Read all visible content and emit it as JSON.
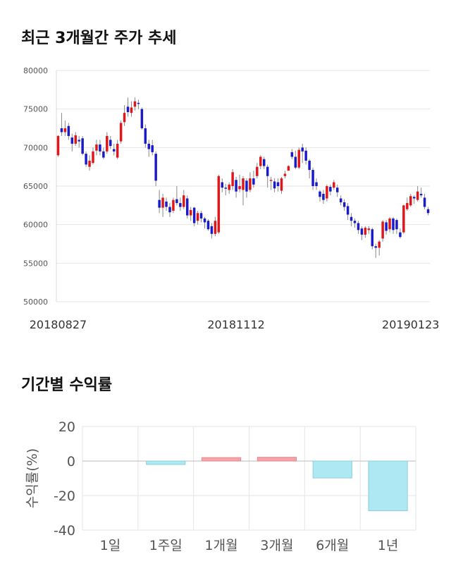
{
  "titles": {
    "candle": "최근 3개월간 주가 추세",
    "returns": "기간별 수익률"
  },
  "colors": {
    "up": "#e0161b",
    "down": "#1a1ac8",
    "wick": "#888888",
    "bar_positive": "#f4a3a8",
    "bar_negative": "#aee8f2"
  },
  "chart_data": [
    {
      "type": "candlestick",
      "ylim": [
        50000,
        80000
      ],
      "y_ticks": [
        50000,
        55000,
        60000,
        65000,
        70000,
        75000,
        80000
      ],
      "x_tick_labels": [
        "20180827",
        "20181112",
        "20190123"
      ],
      "x_tick_index": [
        0,
        51,
        101
      ],
      "grid": true,
      "candles": [
        [
          69000,
          71500,
          68800,
          71600
        ],
        [
          72500,
          72000,
          71500,
          74500
        ],
        [
          72000,
          72500,
          71500,
          73500
        ],
        [
          72800,
          71500,
          71000,
          73200
        ],
        [
          71300,
          70500,
          69500,
          71800
        ],
        [
          70500,
          71600,
          70200,
          72000
        ],
        [
          71000,
          70800,
          70000,
          71500
        ],
        [
          71200,
          69200,
          69000,
          71500
        ],
        [
          69200,
          67800,
          67500,
          69500
        ],
        [
          67500,
          68300,
          67000,
          69000
        ],
        [
          68000,
          69500,
          67800,
          70000
        ],
        [
          69600,
          70400,
          69000,
          71000
        ],
        [
          70400,
          69500,
          69000,
          71000
        ],
        [
          69500,
          68700,
          68500,
          70000
        ],
        [
          69500,
          71500,
          69200,
          72000
        ],
        [
          71000,
          70200,
          69800,
          71500
        ],
        [
          69800,
          69500,
          69000,
          70500
        ],
        [
          68700,
          70500,
          68500,
          71000
        ],
        [
          70800,
          73200,
          70500,
          73500
        ],
        [
          73300,
          74500,
          72800,
          75500
        ],
        [
          75300,
          74600,
          74000,
          76500
        ],
        [
          74500,
          75200,
          74000,
          76000
        ],
        [
          75300,
          76000,
          74800,
          76500
        ],
        [
          75800,
          75700,
          75000,
          76200
        ],
        [
          75000,
          72500,
          72300,
          75200
        ],
        [
          72500,
          70500,
          70000,
          73000
        ],
        [
          70500,
          69800,
          68800,
          71000
        ],
        [
          70300,
          69400,
          69000,
          71000
        ],
        [
          69200,
          65700,
          65000,
          69500
        ],
        [
          63200,
          62200,
          61500,
          64500
        ],
        [
          62200,
          63500,
          61000,
          64000
        ],
        [
          63000,
          62300,
          61800,
          63500
        ],
        [
          62300,
          61600,
          61000,
          62800
        ],
        [
          61800,
          63200,
          61500,
          63500
        ],
        [
          63300,
          62800,
          62500,
          65000
        ],
        [
          62800,
          62300,
          61800,
          63500
        ],
        [
          62300,
          63800,
          62000,
          64500
        ],
        [
          63400,
          61200,
          60800,
          63800
        ],
        [
          61200,
          61900,
          60500,
          62300
        ],
        [
          62200,
          60200,
          59800,
          62300
        ],
        [
          60500,
          61500,
          60000,
          61800
        ],
        [
          61500,
          60800,
          60300,
          61800
        ],
        [
          60800,
          60300,
          59500,
          61000
        ],
        [
          60500,
          59400,
          59200,
          60700
        ],
        [
          59800,
          58800,
          58200,
          60200
        ],
        [
          58800,
          60500,
          58500,
          61000
        ],
        [
          59000,
          66300,
          58800,
          66500
        ],
        [
          65500,
          64800,
          64200,
          66000
        ],
        [
          64800,
          64700,
          63800,
          65300
        ],
        [
          64500,
          65200,
          64000,
          65500
        ],
        [
          65000,
          66800,
          64500,
          67200
        ],
        [
          65800,
          64300,
          63500,
          66200
        ],
        [
          64600,
          65000,
          64200,
          66500
        ],
        [
          64500,
          66000,
          62500,
          66300
        ],
        [
          65700,
          64300,
          63500,
          66000
        ],
        [
          64500,
          66000,
          64200,
          66800
        ],
        [
          66000,
          65200,
          64800,
          67000
        ],
        [
          66300,
          67500,
          66000,
          68000
        ],
        [
          67600,
          68800,
          67200,
          69000
        ],
        [
          68500,
          67600,
          67200,
          68800
        ],
        [
          67500,
          66300,
          64800,
          67800
        ],
        [
          65800,
          65800,
          64500,
          66200
        ],
        [
          65600,
          64700,
          64200,
          66000
        ],
        [
          65500,
          65000,
          64300,
          66000
        ],
        [
          64400,
          66000,
          64000,
          66200
        ],
        [
          66300,
          66600,
          66000,
          67000
        ],
        [
          67000,
          67600,
          67000,
          67700
        ],
        [
          69400,
          68800,
          68500,
          69800
        ],
        [
          68800,
          67400,
          67200,
          69600
        ],
        [
          67400,
          69700,
          67200,
          70000
        ],
        [
          70000,
          69500,
          68000,
          70500
        ],
        [
          69600,
          68300,
          67800,
          70000
        ],
        [
          68300,
          67100,
          66000,
          68500
        ],
        [
          67100,
          65000,
          64500,
          67400
        ],
        [
          65500,
          65000,
          64500,
          66000
        ],
        [
          64300,
          63600,
          63000,
          64500
        ],
        [
          64000,
          63200,
          62700,
          64500
        ],
        [
          63400,
          65000,
          63000,
          65200
        ],
        [
          64900,
          64300,
          63800,
          65200
        ],
        [
          64800,
          65500,
          64500,
          65800
        ],
        [
          64800,
          64200,
          63600,
          65200
        ],
        [
          63400,
          62900,
          62500,
          63800
        ],
        [
          62900,
          62300,
          61800,
          63300
        ],
        [
          62400,
          61300,
          60600,
          62800
        ],
        [
          61000,
          60500,
          59800,
          61500
        ],
        [
          60500,
          60200,
          59600,
          60800
        ],
        [
          60200,
          59300,
          58800,
          60500
        ],
        [
          59500,
          58700,
          58000,
          59800
        ],
        [
          58700,
          59600,
          58300,
          59800
        ],
        [
          59300,
          59500,
          58800,
          59800
        ],
        [
          59400,
          57200,
          56800,
          59600
        ],
        [
          57200,
          57000,
          55700,
          57500
        ],
        [
          57000,
          57800,
          56000,
          58000
        ],
        [
          58200,
          60400,
          57800,
          60600
        ],
        [
          60300,
          59200,
          58700,
          60600
        ],
        [
          59400,
          60800,
          59000,
          61000
        ],
        [
          60800,
          59300,
          58800,
          61000
        ],
        [
          60600,
          59400,
          58800,
          60800
        ],
        [
          59000,
          58400,
          58200,
          59500
        ],
        [
          59000,
          62500,
          58800,
          62600
        ],
        [
          62000,
          62800,
          61800,
          63500
        ],
        [
          62500,
          63700,
          62300,
          64000
        ],
        [
          63600,
          63400,
          62700,
          63800
        ],
        [
          63200,
          64300,
          63000,
          65000
        ],
        [
          64000,
          63800,
          63500,
          64800
        ],
        [
          63500,
          62300,
          62000,
          64000
        ],
        [
          62000,
          61500,
          61200,
          62300
        ]
      ]
    },
    {
      "type": "bar",
      "categories": [
        "1일",
        "1주일",
        "1개월",
        "3개월",
        "6개월",
        "1년"
      ],
      "values": [
        0,
        -2,
        2,
        2.2,
        -9.8,
        -28.8
      ],
      "ylim": [
        -40,
        20
      ],
      "y_ticks": [
        20,
        0,
        -20,
        -40
      ],
      "ylabel": "수익률(%)",
      "grid": true
    }
  ]
}
